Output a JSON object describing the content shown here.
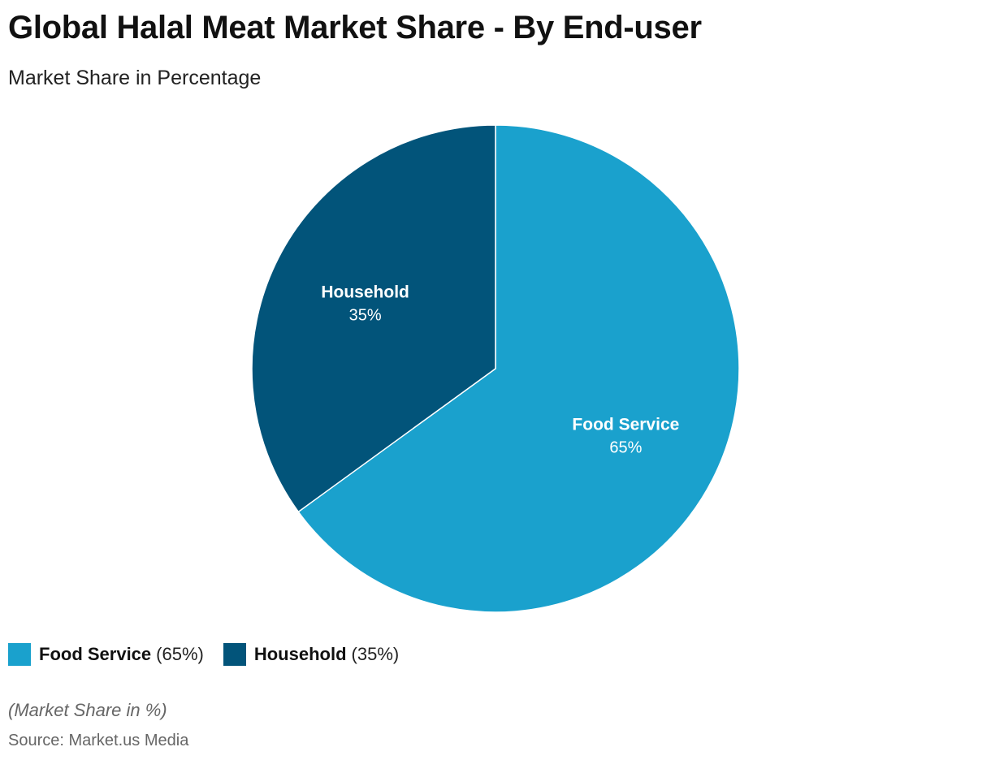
{
  "title": "Global Halal Meat Market Share - By End-user",
  "subtitle": "Market Share in Percentage",
  "note": "(Market Share in %)",
  "source": "Source: Market.us Media",
  "colors": {
    "food_service": "#1aa1cd",
    "household": "#02547a"
  },
  "legend": {
    "items": [
      {
        "name": "Food Service",
        "pct": "(65%)"
      },
      {
        "name": "Household",
        "pct": "(35%)"
      }
    ]
  },
  "chart_data": {
    "type": "pie",
    "title": "Global Halal Meat Market Share - By End-user",
    "subtitle": "Market Share in Percentage",
    "unit": "%",
    "slices": [
      {
        "label": "Food Service",
        "value": 65,
        "value_label": "65%",
        "color": "#1aa1cd"
      },
      {
        "label": "Household",
        "value": 35,
        "value_label": "35%",
        "color": "#02547a"
      }
    ],
    "legend_position": "bottom-left"
  }
}
